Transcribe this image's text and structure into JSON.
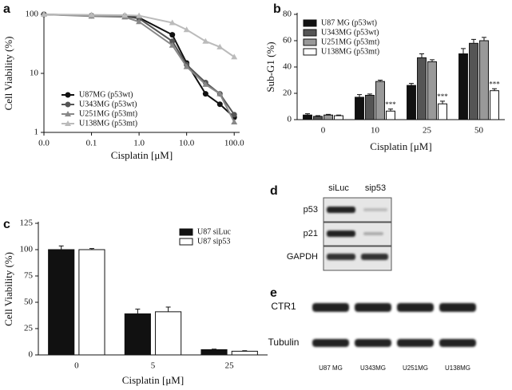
{
  "chart_data": [
    {
      "label": "a",
      "type": "line",
      "x_label": "Cisplatin [μM]",
      "y_label": "Cell Viability (%)",
      "xlog": true,
      "ylog": true,
      "x": [
        0.01,
        0.1,
        0.5,
        1,
        5,
        10,
        25,
        50,
        100
      ],
      "xlim": [
        0.01,
        130
      ],
      "ylim": [
        1,
        100
      ],
      "xticks": [
        {
          "value": 0.01,
          "label": "0.0"
        },
        {
          "value": 0.1,
          "label": "0.1"
        },
        {
          "value": 1,
          "label": "1.0"
        },
        {
          "value": 10,
          "label": "10.0"
        },
        {
          "value": 100,
          "label": "100.0"
        }
      ],
      "yticks": [
        1,
        10,
        100
      ],
      "legend": "lower left",
      "series": [
        {
          "name": "U87MG (p53wt)",
          "color": "#111111",
          "marker": "circle",
          "values": [
            100,
            95,
            93,
            88,
            45,
            15,
            4.5,
            3,
            1.8
          ]
        },
        {
          "name": "U343MG (p53wt)",
          "color": "#555555",
          "marker": "circle",
          "values": [
            100,
            95,
            92,
            85,
            35,
            14,
            7,
            4.5,
            2
          ]
        },
        {
          "name": "U251MG (p53mt)",
          "color": "#888888",
          "marker": "triangle",
          "values": [
            100,
            93,
            90,
            75,
            30,
            13,
            6.5,
            4.5,
            1.5
          ]
        },
        {
          "name": "U138MG (p53mt)",
          "color": "#bbbbbb",
          "marker": "triangle",
          "values": [
            100,
            98,
            97,
            95,
            72,
            55,
            35,
            28,
            19
          ]
        }
      ]
    },
    {
      "label": "b",
      "type": "bar",
      "x_label": "Cisplatin [μM]",
      "y_label": "Sub-G1 (%)",
      "categories": [
        "0",
        "10",
        "25",
        "50"
      ],
      "ylim": [
        0,
        80
      ],
      "yticks": [
        0,
        20,
        40,
        60,
        80
      ],
      "legend": "upper left",
      "series": [
        {
          "name": "U87  MG (p53wt)",
          "color": "#111111",
          "values": [
            3.5,
            17,
            26,
            50
          ],
          "errors": [
            1,
            2,
            1.5,
            4
          ]
        },
        {
          "name": "U343MG (p53wt)",
          "color": "#555555",
          "values": [
            2.5,
            18.5,
            47,
            58
          ],
          "errors": [
            0.5,
            1,
            3,
            3
          ]
        },
        {
          "name": "U251MG (p53mt)",
          "color": "#999999",
          "values": [
            3.5,
            29,
            44,
            60
          ],
          "errors": [
            0.5,
            1,
            1.5,
            2.5
          ]
        },
        {
          "name": "U138MG (p53mt)",
          "color": "#ffffff",
          "values": [
            3,
            6.5,
            12,
            22
          ],
          "errors": [
            0.5,
            1.5,
            2,
            1.5
          ],
          "significance": [
            null,
            "***",
            "***",
            "***"
          ]
        }
      ]
    },
    {
      "label": "c",
      "type": "bar",
      "x_label": "Cisplatin [μM]",
      "y_label": "Cell Viability (%)",
      "categories": [
        "0",
        "5",
        "25"
      ],
      "ylim": [
        0,
        125
      ],
      "yticks": [
        0,
        25,
        50,
        75,
        100,
        125
      ],
      "legend": "upper right",
      "series": [
        {
          "name": "U87 siLuc",
          "color": "#111111",
          "values": [
            100,
            39,
            5
          ],
          "errors": [
            3.5,
            4.5,
            0.5
          ]
        },
        {
          "name": "U87 sip53",
          "color": "#ffffff",
          "values": [
            100,
            41,
            3.5
          ],
          "errors": [
            1,
            4.5,
            0.5
          ]
        }
      ]
    }
  ],
  "blots": {
    "d": {
      "label": "d",
      "columns": [
        "siLuc",
        "sip53"
      ],
      "rows": [
        "p53",
        "p21",
        "GAPDH"
      ]
    },
    "e": {
      "label": "e",
      "columns": [
        "U87 MG",
        "U343MG",
        "U251MG",
        "U138MG"
      ],
      "rows": [
        "CTR1",
        "Tubulin"
      ]
    }
  }
}
